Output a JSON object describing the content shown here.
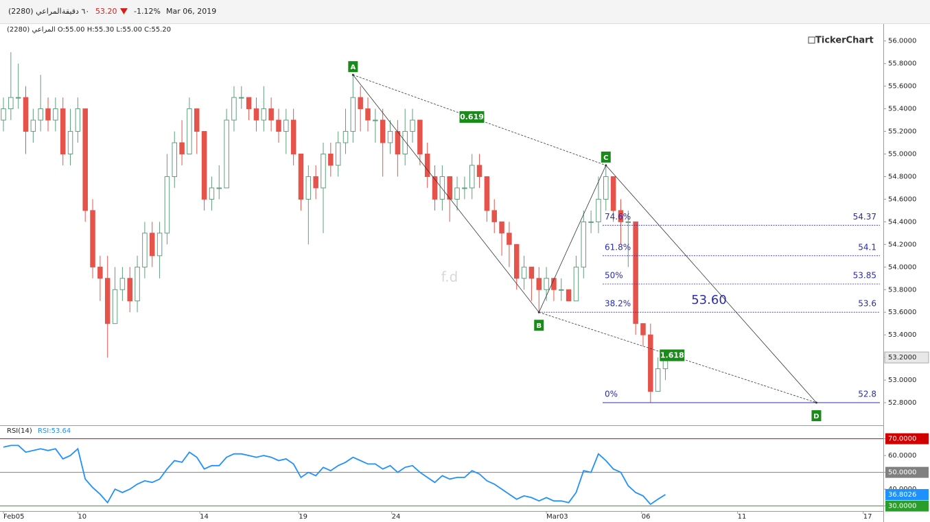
{
  "header": {
    "symbol": "(2280) المراعي",
    "interval": "٦٠ دقيقة",
    "price": "53.20",
    "change": "-1.12%",
    "date": "Mar 06, 2019"
  },
  "chart_data": {
    "type": "candlestick",
    "ohlc_legend": "المراعي (2280) O:55.00 H:55.30 L:55.00 C:55.20",
    "brand": "TickerChart",
    "watermark": "f.d",
    "up_color": "#5f9e7c",
    "down_color": "#e5534b",
    "xlim": [
      0,
      118.3
    ],
    "xticks": [
      {
        "value": 0,
        "label": "Feb05"
      },
      {
        "value": 10,
        "label": "10"
      },
      {
        "value": 26.4,
        "label": "14"
      },
      {
        "value": 39.7,
        "label": "19"
      },
      {
        "value": 52.2,
        "label": "24"
      },
      {
        "value": 73,
        "label": "Mar03"
      },
      {
        "value": 85.8,
        "label": "06"
      },
      {
        "value": 98.7,
        "label": "11"
      },
      {
        "value": 115.6,
        "label": "17"
      }
    ],
    "ylim": [
      52.6,
      56.15
    ],
    "yticks": [
      {
        "value": 56,
        "label": "56.0000"
      },
      {
        "value": 55.8,
        "label": "55.8000"
      },
      {
        "value": 55.6,
        "label": "55.6000"
      },
      {
        "value": 55.4,
        "label": "55.4000"
      },
      {
        "value": 55.2,
        "label": "55.2000"
      },
      {
        "value": 55,
        "label": "55.0000"
      },
      {
        "value": 54.8,
        "label": "54.8000"
      },
      {
        "value": 54.6,
        "label": "54.6000"
      },
      {
        "value": 54.4,
        "label": "54.4000"
      },
      {
        "value": 54.2,
        "label": "54.2000"
      },
      {
        "value": 54,
        "label": "54.0000"
      },
      {
        "value": 53.8,
        "label": "53.8000"
      },
      {
        "value": 53.6,
        "label": "53.6000"
      },
      {
        "value": 53.4,
        "label": "53.4000"
      },
      {
        "value": 53.2,
        "label": "53.2000"
      },
      {
        "value": 53,
        "label": "53.0000"
      },
      {
        "value": 52.8,
        "label": "52.8000"
      }
    ],
    "last_price": {
      "value": 53.2,
      "label": "53.2000"
    },
    "candles": [
      [
        55.3,
        55.5,
        55.2,
        55.4
      ],
      [
        55.4,
        55.9,
        55.3,
        55.5
      ],
      [
        55.5,
        55.8,
        55.4,
        55.5
      ],
      [
        55.5,
        55.6,
        55.0,
        55.2
      ],
      [
        55.2,
        55.4,
        55.1,
        55.3
      ],
      [
        55.3,
        55.7,
        55.2,
        55.4
      ],
      [
        55.4,
        55.5,
        55.2,
        55.3
      ],
      [
        55.3,
        55.5,
        55.2,
        55.4
      ],
      [
        55.4,
        55.5,
        54.9,
        55.0
      ],
      [
        55.0,
        55.4,
        54.9,
        55.2
      ],
      [
        55.2,
        55.5,
        55.1,
        55.4
      ],
      [
        55.4,
        55.4,
        54.4,
        54.5
      ],
      [
        54.5,
        54.6,
        53.9,
        54.0
      ],
      [
        54.0,
        54.1,
        53.7,
        53.9
      ],
      [
        53.9,
        54.1,
        53.2,
        53.5
      ],
      [
        53.5,
        54.0,
        53.5,
        53.8
      ],
      [
        53.8,
        54.0,
        53.7,
        53.9
      ],
      [
        53.9,
        54.0,
        53.6,
        53.7
      ],
      [
        53.7,
        54.1,
        53.6,
        54.0
      ],
      [
        54.0,
        54.4,
        53.9,
        54.3
      ],
      [
        54.3,
        54.4,
        54.0,
        54.1
      ],
      [
        54.1,
        54.4,
        53.9,
        54.3
      ],
      [
        54.3,
        55.0,
        54.2,
        54.8
      ],
      [
        54.8,
        55.2,
        54.7,
        55.1
      ],
      [
        55.1,
        55.3,
        54.9,
        55.0
      ],
      [
        55.0,
        55.5,
        55.0,
        55.4
      ],
      [
        55.4,
        55.4,
        55.0,
        55.2
      ],
      [
        55.2,
        55.2,
        54.5,
        54.6
      ],
      [
        54.6,
        54.8,
        54.5,
        54.7
      ],
      [
        54.7,
        54.9,
        54.6,
        54.7
      ],
      [
        54.7,
        55.4,
        54.7,
        55.3
      ],
      [
        55.3,
        55.6,
        55.2,
        55.5
      ],
      [
        55.5,
        55.6,
        55.4,
        55.5
      ],
      [
        55.5,
        55.5,
        55.3,
        55.4
      ],
      [
        55.4,
        55.5,
        55.2,
        55.3
      ],
      [
        55.3,
        55.6,
        55.2,
        55.4
      ],
      [
        55.4,
        55.5,
        55.2,
        55.3
      ],
      [
        55.3,
        55.4,
        55.1,
        55.2
      ],
      [
        55.2,
        55.4,
        55.0,
        55.3
      ],
      [
        55.3,
        55.4,
        54.9,
        55.0
      ],
      [
        55.0,
        55.0,
        54.5,
        54.6
      ],
      [
        54.6,
        54.9,
        54.2,
        54.8
      ],
      [
        54.8,
        54.9,
        54.6,
        54.7
      ],
      [
        54.7,
        55.1,
        54.3,
        55.0
      ],
      [
        55.0,
        55.1,
        54.8,
        54.9
      ],
      [
        54.9,
        55.2,
        54.8,
        55.1
      ],
      [
        55.1,
        55.4,
        55.0,
        55.2
      ],
      [
        55.2,
        55.7,
        55.1,
        55.5
      ],
      [
        55.5,
        55.6,
        55.2,
        55.4
      ],
      [
        55.4,
        55.5,
        55.2,
        55.3
      ],
      [
        55.3,
        55.4,
        55.1,
        55.3
      ],
      [
        55.3,
        55.4,
        54.8,
        55.1
      ],
      [
        55.1,
        55.3,
        55.0,
        55.2
      ],
      [
        55.2,
        55.3,
        54.8,
        55.0
      ],
      [
        55.0,
        55.4,
        54.9,
        55.2
      ],
      [
        55.2,
        55.4,
        55.1,
        55.3
      ],
      [
        55.3,
        55.3,
        54.9,
        55.0
      ],
      [
        55.0,
        55.1,
        54.7,
        54.8
      ],
      [
        54.8,
        54.9,
        54.5,
        54.6
      ],
      [
        54.6,
        54.9,
        54.5,
        54.8
      ],
      [
        54.8,
        54.8,
        54.4,
        54.6
      ],
      [
        54.6,
        54.8,
        54.5,
        54.7
      ],
      [
        54.7,
        54.8,
        54.6,
        54.7
      ],
      [
        54.7,
        55.0,
        54.6,
        54.9
      ],
      [
        54.9,
        55.0,
        54.7,
        54.8
      ],
      [
        54.8,
        54.8,
        54.4,
        54.5
      ],
      [
        54.5,
        54.6,
        54.3,
        54.4
      ],
      [
        54.4,
        54.4,
        54.1,
        54.3
      ],
      [
        54.3,
        54.4,
        54.0,
        54.2
      ],
      [
        54.2,
        54.2,
        53.8,
        53.9
      ],
      [
        53.9,
        54.1,
        53.8,
        54.0
      ],
      [
        54.0,
        54.0,
        53.7,
        53.9
      ],
      [
        53.9,
        54.0,
        53.6,
        53.8
      ],
      [
        53.8,
        54.0,
        53.7,
        53.9
      ],
      [
        53.9,
        53.9,
        53.7,
        53.8
      ],
      [
        53.8,
        53.9,
        53.7,
        53.8
      ],
      [
        53.8,
        53.8,
        53.7,
        53.7
      ],
      [
        53.7,
        54.1,
        53.7,
        54.0
      ],
      [
        54.0,
        54.5,
        53.9,
        54.4
      ],
      [
        54.4,
        54.5,
        54.3,
        54.4
      ],
      [
        54.4,
        54.8,
        54.3,
        54.6
      ],
      [
        54.6,
        54.9,
        54.5,
        54.8
      ],
      [
        54.8,
        54.8,
        54.4,
        54.5
      ],
      [
        54.5,
        54.6,
        54.2,
        54.4
      ],
      [
        54.4,
        54.5,
        54.0,
        54.4
      ],
      [
        54.4,
        54.4,
        53.4,
        53.5
      ],
      [
        53.5,
        53.5,
        53.3,
        53.4
      ],
      [
        53.4,
        53.5,
        52.8,
        52.9
      ],
      [
        52.9,
        53.2,
        52.9,
        53.1
      ],
      [
        53.1,
        53.2,
        53.0,
        53.2
      ]
    ],
    "pattern": {
      "color": "#333333",
      "label_color": "#1a8a1a",
      "points": [
        {
          "label": "A",
          "x": 47,
          "y": 55.7
        },
        {
          "label": "B",
          "x": 72,
          "y": 53.6
        },
        {
          "label": "C",
          "x": 81,
          "y": 54.9
        },
        {
          "label": "D",
          "x": 109.3,
          "y": 52.8
        }
      ],
      "ratios": [
        "0.619",
        "1.618"
      ]
    },
    "fib": {
      "color": "#2b2bb0",
      "highlight": "53.60",
      "levels": [
        {
          "label": "74.6%",
          "value": 54.37
        },
        {
          "label": "61.8%",
          "value": 54.1
        },
        {
          "label": "50%",
          "value": 53.85
        },
        {
          "label": "38.2%",
          "value": 53.6
        },
        {
          "label": "0%",
          "value": 52.8
        }
      ]
    },
    "rsi": {
      "name": "RSI(14)",
      "legend": "RSI:53.64",
      "color": "#1e90ff",
      "ylim": [
        27,
        78
      ],
      "yticks": [
        {
          "value": 30,
          "label": "30.0000"
        },
        {
          "value": 40,
          "label": "40.0000"
        },
        {
          "value": 50,
          "label": "50.0000"
        },
        {
          "value": 60,
          "label": "60.0000"
        },
        {
          "value": 70,
          "label": "70.0000"
        }
      ],
      "levels": [
        {
          "value": 70,
          "color": "#d00000"
        },
        {
          "value": 50,
          "color": "#808080"
        },
        {
          "value": 30,
          "color": "#2a9d2a"
        }
      ],
      "values": [
        65,
        66,
        66,
        62,
        63,
        64,
        63,
        64,
        58,
        60,
        64,
        46,
        41,
        37,
        32,
        40,
        38,
        40,
        43,
        45,
        44,
        46,
        52,
        57,
        56,
        62,
        59,
        52,
        54,
        54,
        59,
        61,
        61,
        60,
        59,
        60,
        59,
        57,
        58,
        55,
        47,
        50,
        48,
        53,
        51,
        54,
        56,
        59,
        57,
        55,
        55,
        52,
        54,
        50,
        53,
        54,
        50,
        47,
        44,
        48,
        46,
        47,
        47,
        51,
        49,
        45,
        43,
        40,
        37,
        34,
        36,
        35,
        33,
        35,
        33,
        33,
        32,
        38,
        51,
        50,
        61,
        57,
        52,
        50,
        42,
        38,
        36,
        31,
        34,
        36.8026
      ]
    }
  }
}
